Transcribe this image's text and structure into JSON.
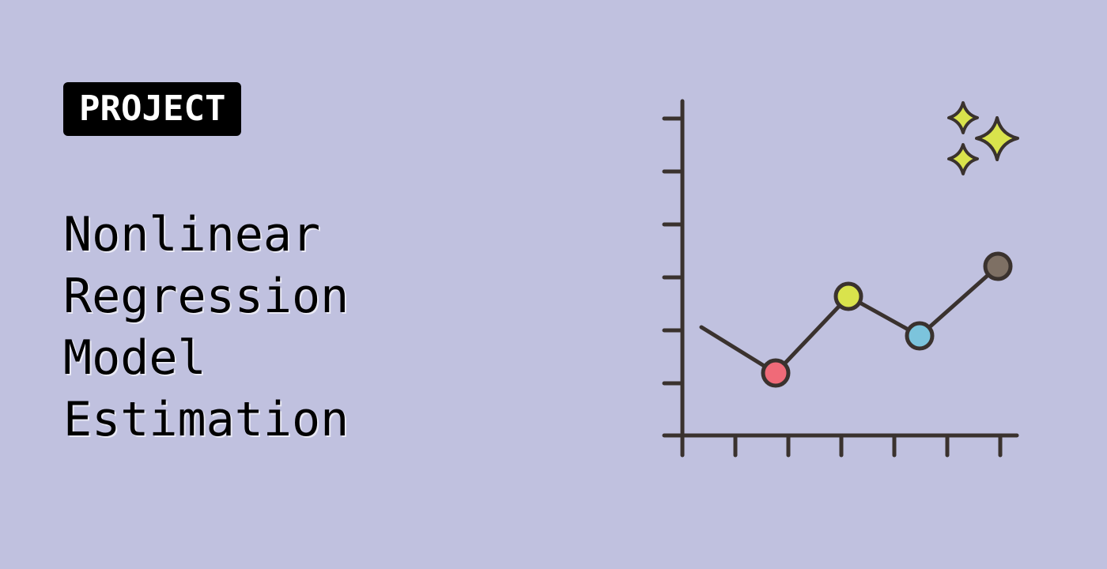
{
  "badge": {
    "label": "PROJECT"
  },
  "title": {
    "lines": [
      "Nonlinear",
      "Regression",
      "Model",
      "Estimation"
    ]
  },
  "illustration": {
    "icon": "line-chart-icon",
    "sparkle_icon": "sparkles-icon",
    "colors": {
      "background": "#c0c1df",
      "stroke": "#3a322e",
      "point_1": "#f06a78",
      "point_2": "#d9e34c",
      "point_3": "#7cc4dc",
      "point_4": "#7e7064",
      "sparkle": "#d9e34c"
    }
  }
}
